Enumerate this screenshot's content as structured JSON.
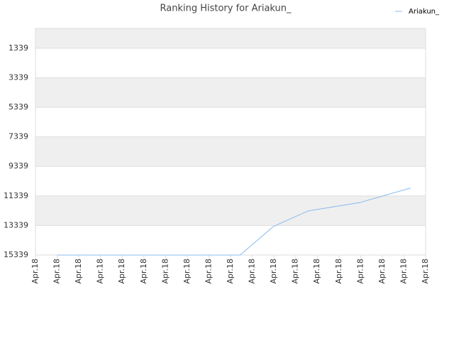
{
  "chart_data": {
    "type": "line",
    "title": "Ranking History for Ariakun_",
    "x": [
      1,
      9.44,
      10.98,
      12.59,
      14.98,
      17.31
    ],
    "series": [
      {
        "name": "Ariakun_",
        "color": "#88bbee",
        "values": [
          15339,
          15339,
          13400,
          12350,
          11780,
          10800
        ]
      }
    ],
    "xlim": [
      0,
      18
    ],
    "xticks": [
      {
        "value": 0,
        "label": "Apr.18"
      },
      {
        "value": 1,
        "label": "Apr.18"
      },
      {
        "value": 2,
        "label": "Apr.18"
      },
      {
        "value": 3,
        "label": "Apr.18"
      },
      {
        "value": 4,
        "label": "Apr.18"
      },
      {
        "value": 5,
        "label": "Apr.18"
      },
      {
        "value": 6,
        "label": "Apr.18"
      },
      {
        "value": 7,
        "label": "Apr.18"
      },
      {
        "value": 8,
        "label": "Apr.18"
      },
      {
        "value": 9,
        "label": "Apr.18"
      },
      {
        "value": 10,
        "label": "Apr.18"
      },
      {
        "value": 11,
        "label": "Apr.18"
      },
      {
        "value": 12,
        "label": "Apr.18"
      },
      {
        "value": 13,
        "label": "Apr.18"
      },
      {
        "value": 14,
        "label": "Apr.18"
      },
      {
        "value": 15,
        "label": "Apr.18"
      },
      {
        "value": 16,
        "label": "Apr.18"
      },
      {
        "value": 17,
        "label": "Apr.18"
      },
      {
        "value": 18,
        "label": "Apr.18"
      }
    ],
    "ylim": [
      0,
      15339
    ],
    "y_inverted": true,
    "yticks": [
      1339,
      3339,
      5339,
      7339,
      9339,
      11339,
      13339,
      15339
    ],
    "grid": true,
    "legend": "top-right"
  }
}
